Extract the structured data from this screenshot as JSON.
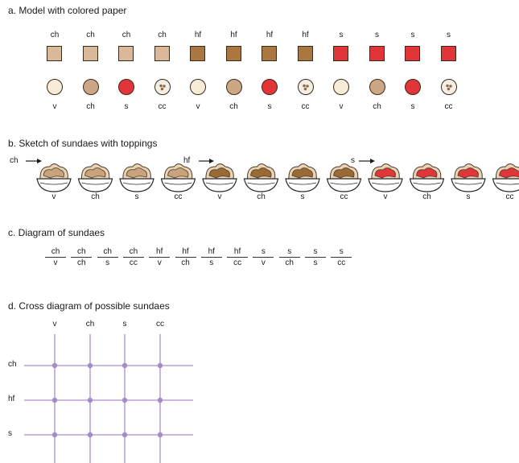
{
  "section_a": {
    "title": "a. Model with colored paper",
    "squares": [
      {
        "label": "ch",
        "color": "#d9b99a"
      },
      {
        "label": "ch",
        "color": "#d9b99a"
      },
      {
        "label": "ch",
        "color": "#d9b99a"
      },
      {
        "label": "ch",
        "color": "#d9b99a"
      },
      {
        "label": "hf",
        "color": "#a9773f"
      },
      {
        "label": "hf",
        "color": "#a9773f"
      },
      {
        "label": "hf",
        "color": "#a9773f"
      },
      {
        "label": "hf",
        "color": "#a9773f"
      },
      {
        "label": "s",
        "color": "#e2353a"
      },
      {
        "label": "s",
        "color": "#e2353a"
      },
      {
        "label": "s",
        "color": "#e2353a"
      },
      {
        "label": "s",
        "color": "#e2353a"
      }
    ],
    "circles": [
      {
        "label": "v",
        "color": "#f7ecd8"
      },
      {
        "label": "ch",
        "color": "#cba785"
      },
      {
        "label": "s",
        "color": "#e2353a"
      },
      {
        "label": "cc",
        "color": "#f4eee4"
      },
      {
        "label": "v",
        "color": "#f7ecd8"
      },
      {
        "label": "ch",
        "color": "#cba785"
      },
      {
        "label": "s",
        "color": "#e2353a"
      },
      {
        "label": "cc",
        "color": "#f4eee4"
      },
      {
        "label": "v",
        "color": "#f7ecd8"
      },
      {
        "label": "ch",
        "color": "#cba785"
      },
      {
        "label": "s",
        "color": "#e2353a"
      },
      {
        "label": "cc",
        "color": "#f4eee4"
      }
    ]
  },
  "section_b": {
    "title": "b. Sketch of sundaes with toppings",
    "arrow_labels": [
      "ch",
      "hf",
      "s"
    ],
    "sundaes": [
      {
        "label": "v",
        "topping": "#c9a37e"
      },
      {
        "label": "ch",
        "topping": "#c9a37e"
      },
      {
        "label": "s",
        "topping": "#c9a37e"
      },
      {
        "label": "cc",
        "topping": "#c9a37e"
      },
      {
        "label": "v",
        "topping": "#9a6a35"
      },
      {
        "label": "ch",
        "topping": "#9a6a35"
      },
      {
        "label": "s",
        "topping": "#9a6a35"
      },
      {
        "label": "cc",
        "topping": "#9a6a35"
      },
      {
        "label": "v",
        "topping": "#e2353a"
      },
      {
        "label": "ch",
        "topping": "#e2353a"
      },
      {
        "label": "s",
        "topping": "#e2353a"
      },
      {
        "label": "cc",
        "topping": "#e2353a"
      }
    ]
  },
  "section_c": {
    "title": "c. Diagram of sundaes",
    "fractions": [
      {
        "num": "ch",
        "den": "v"
      },
      {
        "num": "ch",
        "den": "ch"
      },
      {
        "num": "ch",
        "den": "s"
      },
      {
        "num": "ch",
        "den": "cc"
      },
      {
        "num": "hf",
        "den": "v"
      },
      {
        "num": "hf",
        "den": "ch"
      },
      {
        "num": "hf",
        "den": "s"
      },
      {
        "num": "hf",
        "den": "cc"
      },
      {
        "num": "s",
        "den": "v"
      },
      {
        "num": "s",
        "den": "ch"
      },
      {
        "num": "s",
        "den": "s"
      },
      {
        "num": "s",
        "den": "cc"
      }
    ]
  },
  "section_d": {
    "title": "d. Cross diagram of possible sundaes",
    "columns": [
      "v",
      "ch",
      "s",
      "cc"
    ],
    "rows": [
      "ch",
      "hf",
      "s"
    ],
    "line_color": "#b9a3d8",
    "dot_color": "#a48cc9"
  }
}
